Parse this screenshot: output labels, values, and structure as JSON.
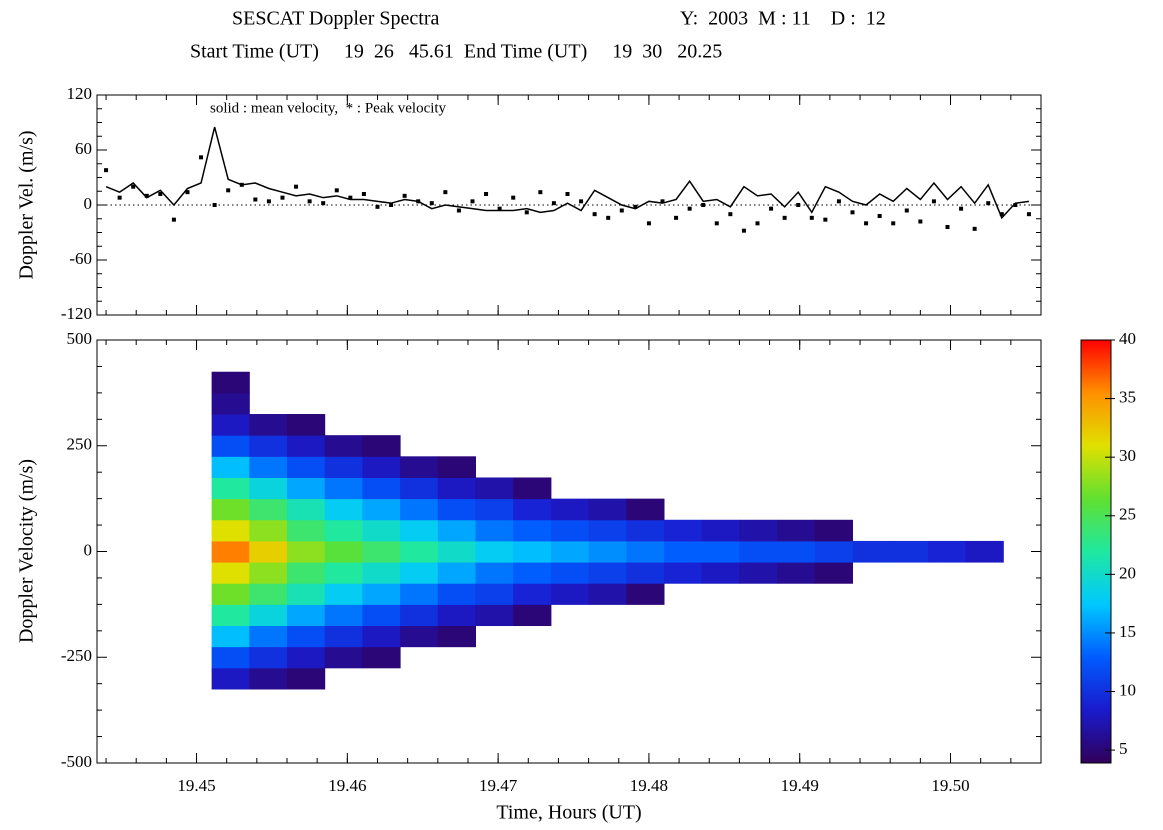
{
  "chart_data": [
    {
      "type": "line",
      "title": "SESCAT Doppler Spectra",
      "date_label": "Y:  2003  M : 11    D :  12",
      "subtitle": "Start Time (UT)     19  26   45.61  End Time (UT)     19  30   20.25",
      "annotation": "solid : mean velocity,  * : Peak velocity",
      "ylabel": "Doppler Vel. (m/s)",
      "xlim": [
        19.4434,
        19.506
      ],
      "ylim": [
        -120,
        120
      ],
      "yticks": [
        120,
        60,
        0,
        -60,
        -120
      ],
      "zero_line": true,
      "x": [
        19.444,
        19.4449,
        19.4458,
        19.4467,
        19.4476,
        19.4485,
        19.4494,
        19.4503,
        19.4512,
        19.4521,
        19.453,
        19.4539,
        19.4548,
        19.4557,
        19.4566,
        19.4575,
        19.4584,
        19.4593,
        19.4602,
        19.4611,
        19.462,
        19.4629,
        19.4638,
        19.4647,
        19.4656,
        19.4665,
        19.4674,
        19.4683,
        19.4692,
        19.4701,
        19.471,
        19.4719,
        19.4728,
        19.4737,
        19.4746,
        19.4755,
        19.4764,
        19.4773,
        19.4782,
        19.4791,
        19.48,
        19.4809,
        19.4818,
        19.4827,
        19.4836,
        19.4845,
        19.4854,
        19.4863,
        19.4872,
        19.4881,
        19.489,
        19.4899,
        19.4908,
        19.4917,
        19.4926,
        19.4935,
        19.4944,
        19.4953,
        19.4962,
        19.4971,
        19.498,
        19.4989,
        19.4998,
        19.5007,
        19.5016,
        19.5025,
        19.5034,
        19.5043,
        19.5052
      ],
      "series": [
        {
          "style": "line",
          "color": "#000000",
          "values": [
            20,
            14,
            24,
            8,
            16,
            0,
            18,
            24,
            85,
            28,
            22,
            24,
            18,
            14,
            10,
            12,
            8,
            10,
            6,
            6,
            4,
            2,
            6,
            4,
            -4,
            0,
            -2,
            -4,
            -6,
            -6,
            -6,
            -4,
            -8,
            -6,
            2,
            -6,
            16,
            8,
            0,
            -4,
            4,
            2,
            6,
            26,
            4,
            6,
            -2,
            20,
            10,
            12,
            -2,
            14,
            -8,
            20,
            14,
            4,
            0,
            12,
            4,
            18,
            6,
            24,
            6,
            20,
            2,
            22,
            -14,
            2,
            4
          ]
        },
        {
          "style": "dot",
          "color": "#000000",
          "values": [
            38,
            8,
            20,
            10,
            12,
            -16,
            14,
            52,
            0,
            16,
            22,
            6,
            4,
            8,
            20,
            4,
            2,
            16,
            8,
            12,
            -2,
            0,
            10,
            4,
            2,
            14,
            -6,
            4,
            12,
            -4,
            8,
            -8,
            14,
            2,
            12,
            4,
            -10,
            -14,
            -6,
            -2,
            -20,
            4,
            -14,
            -4,
            0,
            -20,
            -10,
            -28,
            -20,
            -4,
            -14,
            0,
            -14,
            -16,
            4,
            -8,
            -20,
            -12,
            -20,
            -6,
            -18,
            4,
            -24,
            -4,
            -26,
            2,
            -10,
            0,
            -10
          ]
        }
      ]
    },
    {
      "type": "heatmap",
      "xlabel": "Time, Hours (UT)",
      "ylabel": "Doppler Velocity (m/s)",
      "xlim": [
        19.4434,
        19.506
      ],
      "ylim": [
        -500,
        500
      ],
      "xticks": [
        19.45,
        19.46,
        19.47,
        19.48,
        19.49,
        {
          "value": 19.5,
          "label": "19.50"
        }
      ],
      "yticks": [
        500,
        250,
        0,
        -250,
        -500
      ],
      "zlim": [
        3.9,
        40
      ],
      "zticks": [
        40,
        35,
        30,
        25,
        20,
        15,
        10,
        5
      ],
      "colormap": [
        "#30005a",
        "#1a1acd",
        "#005cff",
        "#00c8ff",
        "#20e8a0",
        "#60e030",
        "#e0e000",
        "#ff9000",
        "#ff0000"
      ],
      "x_edges": [
        19.451,
        19.4535,
        19.456,
        19.4585,
        19.461,
        19.4635,
        19.466,
        19.4685,
        19.471,
        19.4735,
        19.476,
        19.4785,
        19.481,
        19.4835,
        19.486,
        19.4885,
        19.491,
        19.4935,
        19.496,
        19.4985,
        19.501,
        19.5035
      ],
      "y_edges": [
        -375,
        -325,
        -275,
        -225,
        -175,
        -125,
        -75,
        -25,
        25,
        75,
        125,
        175,
        225,
        275,
        325,
        375,
        425
      ],
      "z": [
        [
          null,
          8,
          12,
          17,
          22,
          27,
          31,
          36,
          31,
          27,
          22,
          17,
          12,
          8,
          6,
          5
        ],
        [
          null,
          6,
          10,
          14,
          19,
          24,
          28,
          32,
          28,
          24,
          19,
          14,
          10,
          6,
          null,
          null
        ],
        [
          null,
          5,
          8,
          12,
          16,
          21,
          24,
          28,
          24,
          21,
          16,
          12,
          8,
          5,
          null,
          null
        ],
        [
          null,
          null,
          6,
          10,
          14,
          18,
          22,
          26,
          22,
          18,
          14,
          10,
          6,
          null,
          null,
          null
        ],
        [
          null,
          null,
          5,
          8,
          12,
          16,
          20,
          24,
          20,
          16,
          12,
          8,
          5,
          null,
          null,
          null
        ],
        [
          null,
          null,
          null,
          6,
          10,
          14,
          18,
          22,
          18,
          14,
          10,
          6,
          null,
          null,
          null,
          null
        ],
        [
          null,
          null,
          null,
          5,
          8,
          12,
          16,
          20,
          16,
          12,
          8,
          5,
          null,
          null,
          null,
          null
        ],
        [
          null,
          null,
          null,
          null,
          7,
          11,
          14,
          18,
          14,
          11,
          7,
          null,
          null,
          null,
          null,
          null
        ],
        [
          null,
          null,
          null,
          null,
          5,
          9,
          13,
          17,
          13,
          9,
          5,
          null,
          null,
          null,
          null,
          null
        ],
        [
          null,
          null,
          null,
          null,
          null,
          8,
          12,
          16,
          12,
          8,
          null,
          null,
          null,
          null,
          null,
          null
        ],
        [
          null,
          null,
          null,
          null,
          null,
          7,
          11,
          15,
          11,
          7,
          null,
          null,
          null,
          null,
          null,
          null
        ],
        [
          null,
          null,
          null,
          null,
          null,
          5,
          10,
          14,
          10,
          5,
          null,
          null,
          null,
          null,
          null,
          null
        ],
        [
          null,
          null,
          null,
          null,
          null,
          null,
          9,
          13,
          9,
          null,
          null,
          null,
          null,
          null,
          null,
          null
        ],
        [
          null,
          null,
          null,
          null,
          null,
          null,
          8,
          13,
          8,
          null,
          null,
          null,
          null,
          null,
          null,
          null
        ],
        [
          null,
          null,
          null,
          null,
          null,
          null,
          7,
          12,
          7,
          null,
          null,
          null,
          null,
          null,
          null,
          null
        ],
        [
          null,
          null,
          null,
          null,
          null,
          null,
          6,
          12,
          6,
          null,
          null,
          null,
          null,
          null,
          null,
          null
        ],
        [
          null,
          null,
          null,
          null,
          null,
          null,
          5,
          11,
          5,
          null,
          null,
          null,
          null,
          null,
          null,
          null
        ],
        [
          null,
          null,
          null,
          null,
          null,
          null,
          null,
          10,
          null,
          null,
          null,
          null,
          null,
          null,
          null,
          null
        ],
        [
          null,
          null,
          null,
          null,
          null,
          null,
          null,
          10,
          null,
          null,
          null,
          null,
          null,
          null,
          null,
          null
        ],
        [
          null,
          null,
          null,
          null,
          null,
          null,
          null,
          9,
          null,
          null,
          null,
          null,
          null,
          null,
          null,
          null
        ],
        [
          null,
          null,
          null,
          null,
          null,
          null,
          null,
          8,
          null,
          null,
          null,
          null,
          null,
          null,
          null,
          null
        ]
      ]
    }
  ]
}
